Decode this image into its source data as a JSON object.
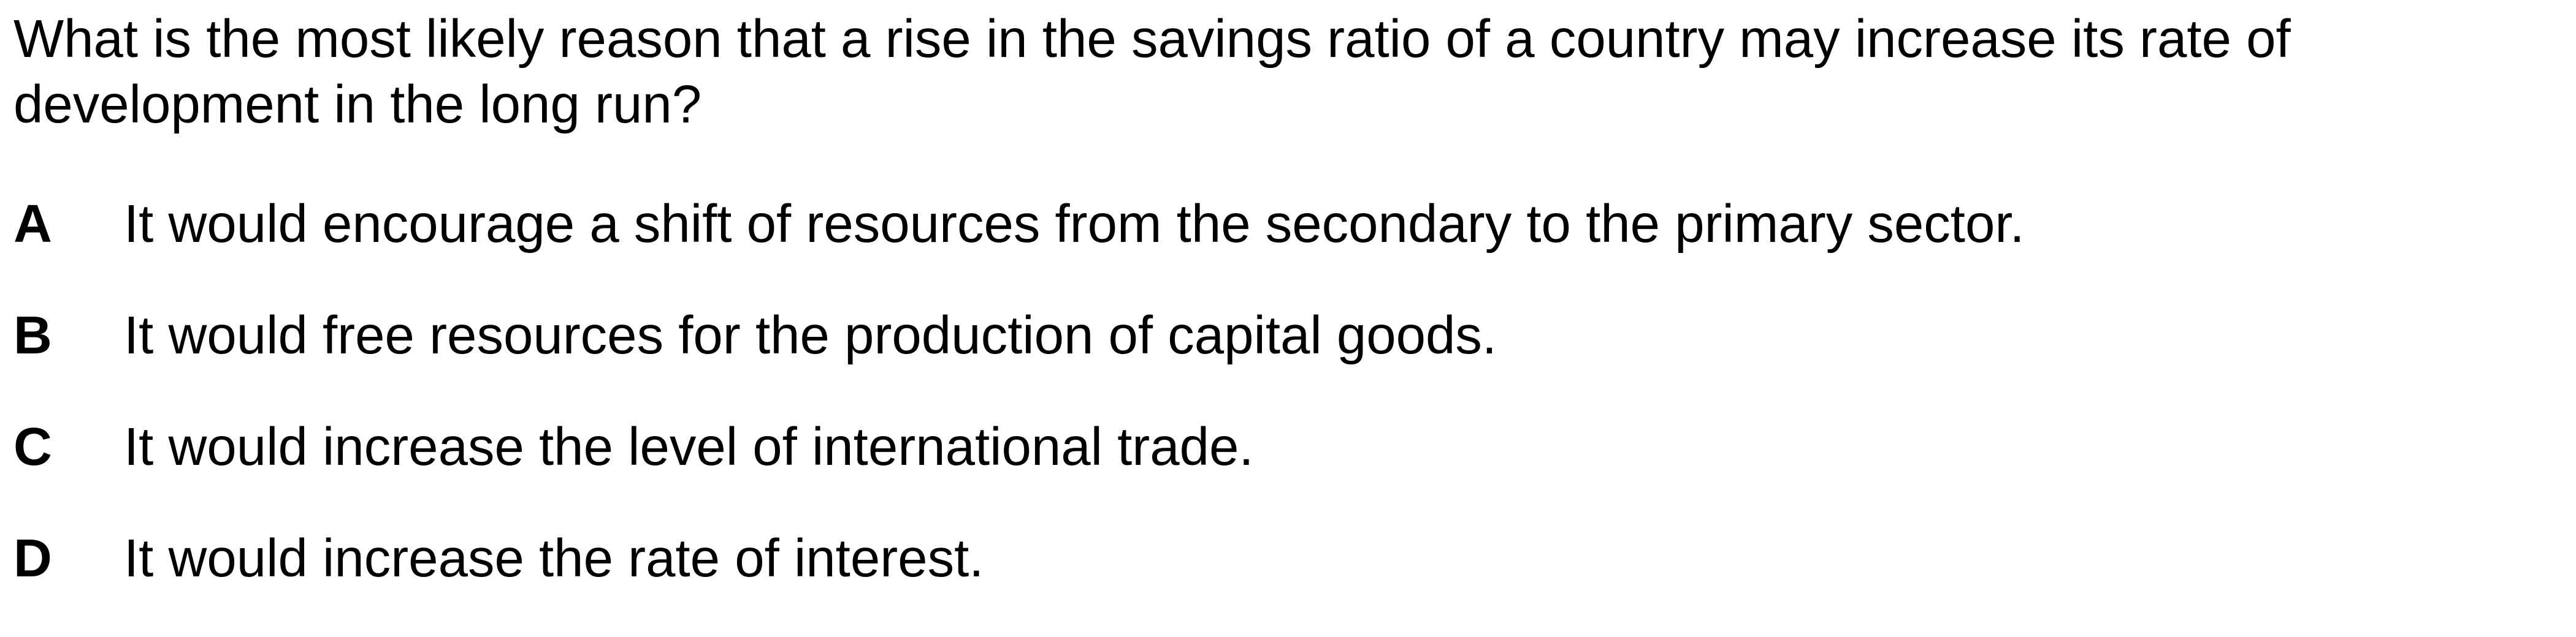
{
  "question": {
    "text": "What is the most likely reason that a rise in the savings ratio of a country may increase its rate of development in the long run?"
  },
  "options": [
    {
      "letter": "A",
      "text": "It would encourage a shift of resources from the secondary to the primary sector."
    },
    {
      "letter": "B",
      "text": "It would free resources for the production of capital goods."
    },
    {
      "letter": "C",
      "text": "It would increase the level of international trade."
    },
    {
      "letter": "D",
      "text": "It would increase the rate of interest."
    }
  ]
}
